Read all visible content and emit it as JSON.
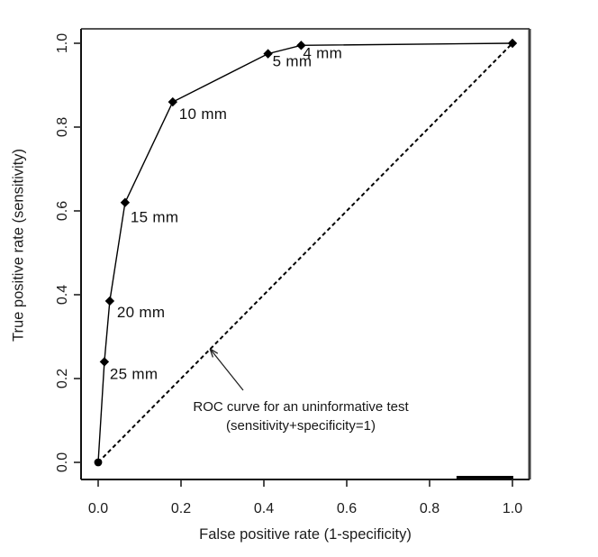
{
  "page": {
    "background": "#ffffff",
    "text_color": "#1c1c1c",
    "line_color": "#000000",
    "box_right_edge_color": "#3d3d3d"
  },
  "chart_data": {
    "type": "line",
    "title": "",
    "xlabel": "False positive rate (1-specificity)",
    "ylabel": "True positive rate (sensitivity)",
    "xlim": [
      0.0,
      1.0
    ],
    "ylim": [
      0.0,
      1.0
    ],
    "grid": false,
    "legend": "none",
    "x_tick_values": [
      0.0,
      0.2,
      0.4,
      0.6,
      0.8,
      1.0
    ],
    "x_tick_labels": [
      "0.0",
      "0.2",
      "0.4",
      "0.6",
      "0.8",
      "1.0"
    ],
    "y_tick_values": [
      0.0,
      0.2,
      0.4,
      0.6,
      0.8,
      1.0
    ],
    "y_tick_labels": [
      "0.0",
      "0.2",
      "0.4",
      "0.6",
      "0.8",
      "1.0"
    ],
    "series": [
      {
        "id": "empirical-roc-curve",
        "line_style": "solid",
        "marker": "diamond",
        "points": [
          {
            "x": 0.0,
            "y": 0.0,
            "label": "",
            "marker": "dot"
          },
          {
            "x": 0.015,
            "y": 0.24,
            "label": "25 mm",
            "label_dx": 6,
            "label_dy": 19
          },
          {
            "x": 0.028,
            "y": 0.385,
            "label": "20 mm",
            "label_dx": 8,
            "label_dy": 18
          },
          {
            "x": 0.065,
            "y": 0.62,
            "label": "15 mm",
            "label_dx": 6,
            "label_dy": 22
          },
          {
            "x": 0.18,
            "y": 0.86,
            "label": "10 mm",
            "label_dx": 7,
            "label_dy": 19
          },
          {
            "x": 0.41,
            "y": 0.975,
            "label": "5 mm",
            "label_dx": 5,
            "label_dy": 14
          },
          {
            "x": 0.49,
            "y": 0.995,
            "label": "4 mm",
            "label_dx": 2,
            "label_dy": 14
          },
          {
            "x": 1.0,
            "y": 1.0,
            "label": ""
          }
        ]
      },
      {
        "id": "chance-diagonal",
        "line_style": "dashed",
        "marker": "none",
        "points": [
          {
            "x": 0.0,
            "y": 0.0
          },
          {
            "x": 1.0,
            "y": 1.0
          }
        ]
      }
    ],
    "annotation": {
      "line1": "ROC curve for an uninformative test",
      "line2": "(sensitivity+specificity=1)",
      "arrow_tail": {
        "x": 0.35,
        "y": 0.172
      },
      "arrow_tip": {
        "x": 0.27,
        "y": 0.271
      }
    }
  }
}
